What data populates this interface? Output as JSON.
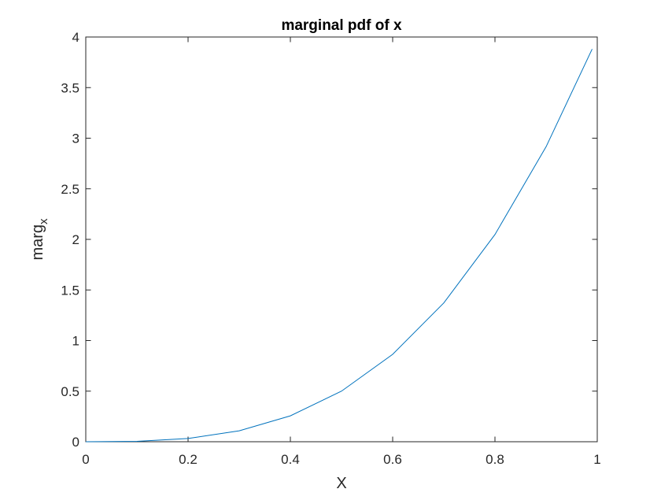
{
  "chart_data": {
    "type": "line",
    "title": "marginal pdf of x",
    "xlabel": "X",
    "ylabel": {
      "base": "marg",
      "subscript": "x"
    },
    "xlim": [
      0,
      1
    ],
    "ylim": [
      0,
      4
    ],
    "xticks": [
      0,
      0.2,
      0.4,
      0.6,
      0.8,
      1
    ],
    "xtick_labels": [
      "0",
      "0.2",
      "0.4",
      "0.6",
      "0.8",
      "1"
    ],
    "yticks": [
      0,
      0.5,
      1,
      1.5,
      2,
      2.5,
      3,
      3.5,
      4
    ],
    "ytick_labels": [
      "0",
      "0.5",
      "1",
      "1.5",
      "2",
      "2.5",
      "3",
      "3.5",
      "4"
    ],
    "grid": false,
    "legend": false,
    "series": [
      {
        "color": "#0072bd",
        "x": [
          0,
          0.1,
          0.2,
          0.3,
          0.4,
          0.5,
          0.6,
          0.7,
          0.8,
          0.9,
          0.99
        ],
        "y": [
          0,
          0.004,
          0.032,
          0.108,
          0.256,
          0.5,
          0.864,
          1.372,
          2.048,
          2.916,
          3.881
        ]
      }
    ]
  }
}
